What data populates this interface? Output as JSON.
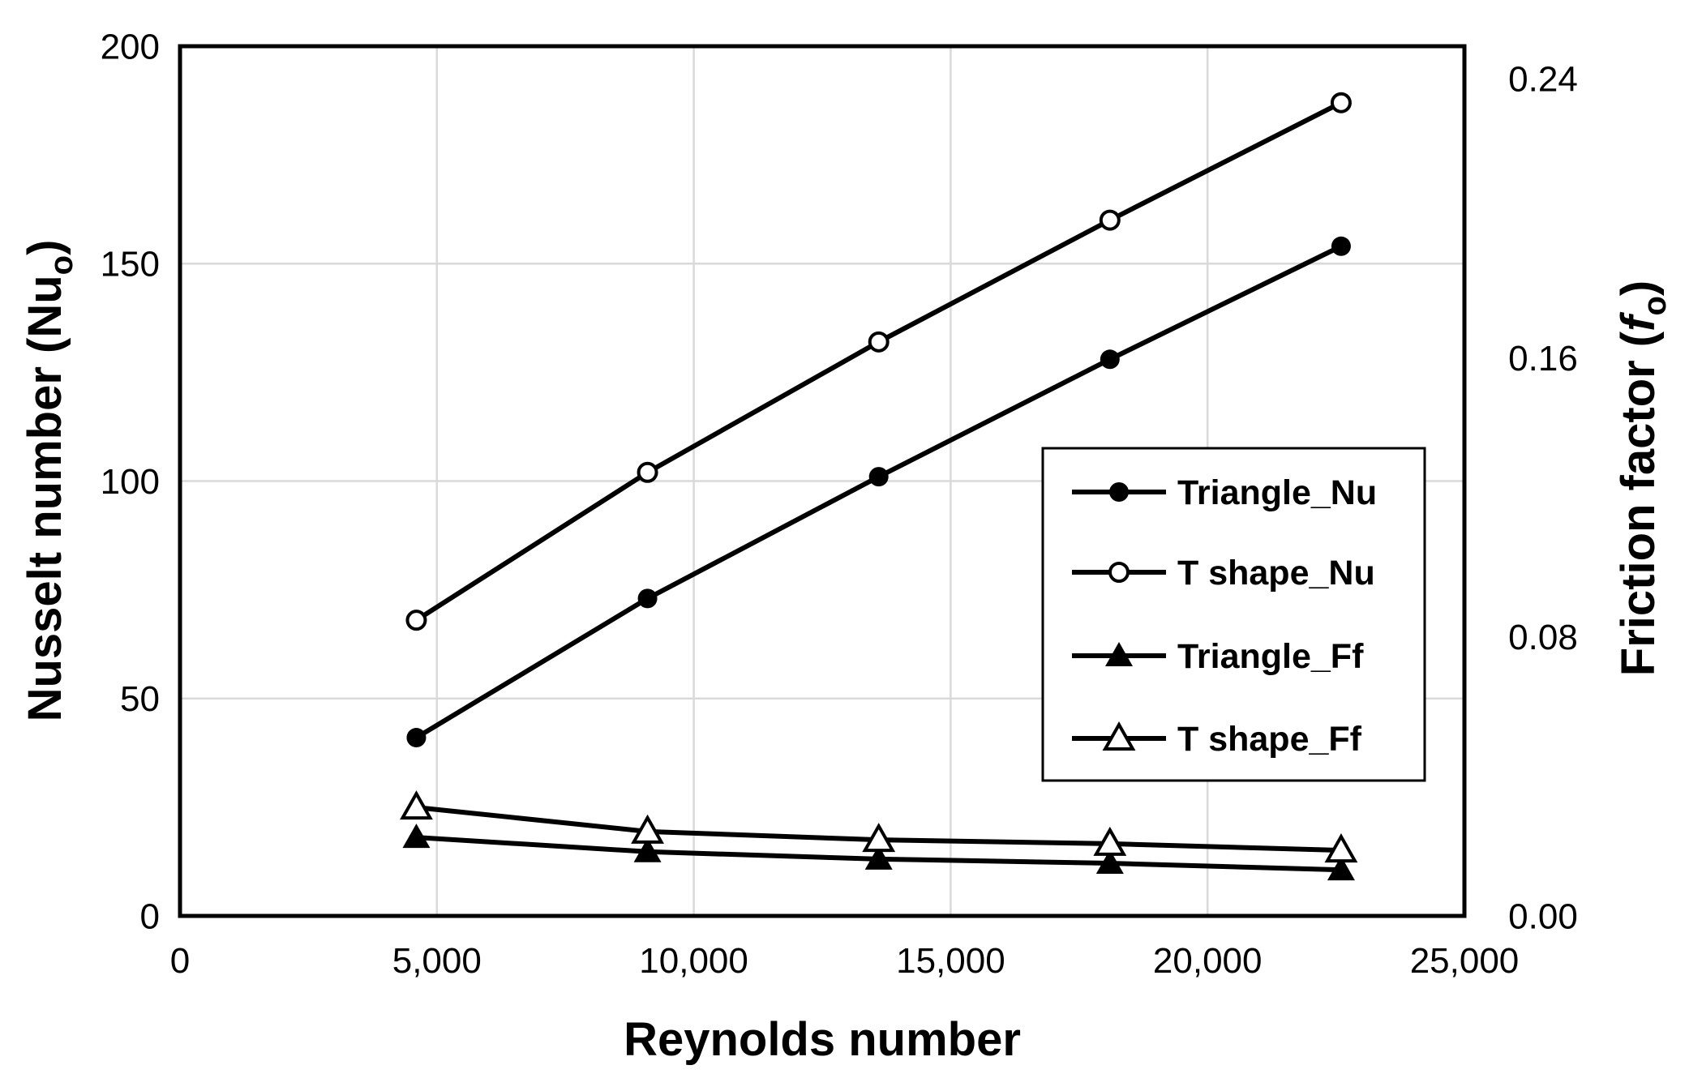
{
  "figure": {
    "background": "#ffffff"
  },
  "colors": {
    "series": "#000000",
    "grid": "#d9d9d9",
    "text": "#000000",
    "plot_border": "#000000",
    "legend_border": "#000000",
    "legend_background": "#ffffff"
  },
  "chart_data": {
    "type": "line",
    "x": [
      4600,
      9100,
      13600,
      18100,
      22600
    ],
    "series": [
      {
        "name": "Triangle_Nu",
        "axis": "left",
        "marker": "filled-circle",
        "values": [
          41,
          73,
          101,
          128,
          154
        ]
      },
      {
        "name": "T shape_Nu",
        "axis": "left",
        "marker": "open-circle",
        "values": [
          68,
          102,
          132,
          160,
          187
        ]
      },
      {
        "name": "Triangle_Ff",
        "axis": "right",
        "marker": "filled-triangle",
        "values": [
          0.0225,
          0.0184,
          0.0163,
          0.0151,
          0.0132
        ]
      },
      {
        "name": "T shape_Ff",
        "axis": "right",
        "marker": "open-triangle",
        "values": [
          0.0311,
          0.0242,
          0.0218,
          0.0207,
          0.0188
        ]
      }
    ],
    "x_axis": {
      "label": "Reynolds number",
      "min": 0,
      "max": 25000,
      "ticks": [
        0,
        5000,
        10000,
        15000,
        20000,
        25000
      ],
      "tick_labels": [
        "0",
        "5,000",
        "10,000",
        "15,000",
        "20,000",
        "25,000"
      ]
    },
    "y_left": {
      "title_pre": "Nusselt number (Nu",
      "title_sub": "o",
      "title_post": ")",
      "min": 0,
      "max": 200,
      "ticks": [
        0,
        50,
        100,
        150,
        200
      ],
      "tick_labels": [
        "0",
        "50",
        "100",
        "150",
        "200"
      ]
    },
    "y_right": {
      "title_pre": "Friction factor (",
      "title_f": "f",
      "title_sub": "o",
      "title_post": ")",
      "min": 0,
      "max": 0.2493,
      "ticks": [
        0,
        0.08,
        0.16,
        0.24
      ],
      "tick_labels": [
        "0.00",
        "0.08",
        "0.16",
        "0.24"
      ]
    },
    "grid": {
      "on": true,
      "horizontal_at": [
        50,
        100,
        150
      ],
      "vertical_at": [
        5000,
        10000,
        15000,
        20000
      ]
    },
    "legend": {
      "position": "inside-right"
    }
  }
}
